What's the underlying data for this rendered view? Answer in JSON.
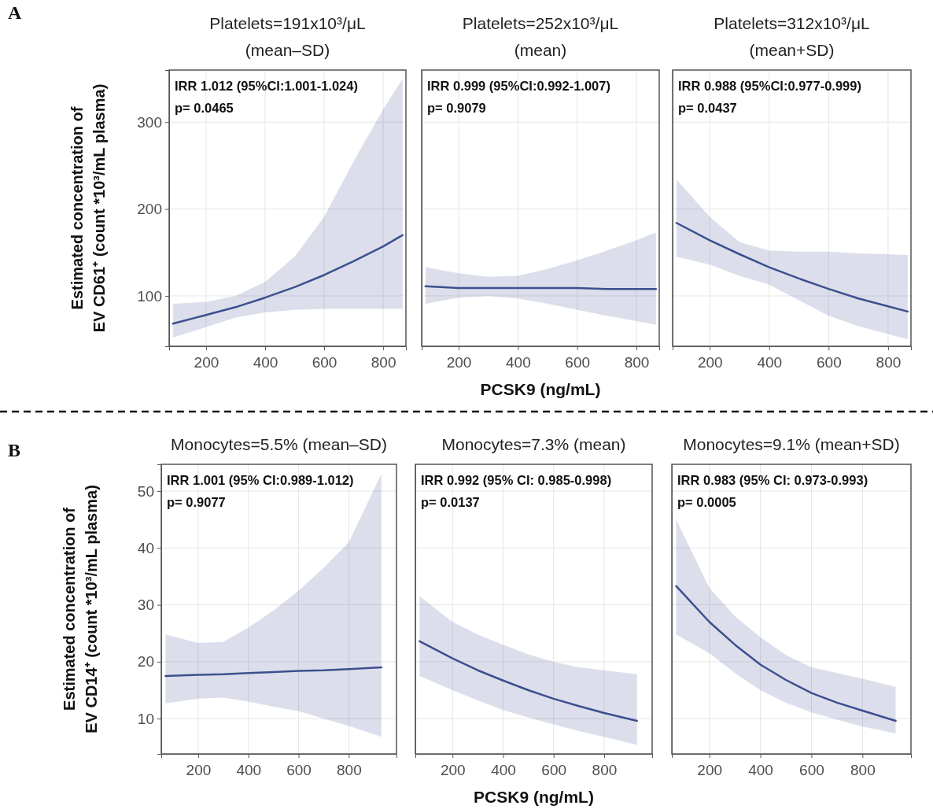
{
  "chart_data": [
    {
      "type": "line",
      "title": "Platelets=191x10³/μL",
      "subtitle": "(mean–SD)",
      "ylabel": "Estimated concentration of\nEV CD61⁺ (count *10³/mL plasma)",
      "annotations": [
        "IRR 1.012 (95%CI:1.001-1.024)",
        "p= 0.0465",
        "A"
      ],
      "x": [
        88,
        200,
        300,
        400,
        500,
        600,
        700,
        800,
        866
      ],
      "xlim": [
        75,
        877
      ],
      "xticks": [
        200,
        400,
        600,
        800
      ],
      "ylim": [
        42,
        360
      ],
      "yticks": [
        100,
        200,
        300
      ],
      "grid": true,
      "series": [
        {
          "color": "#3d4f8f",
          "values": [
            68,
            78,
            87,
            98,
            110,
            124,
            140,
            157,
            170
          ],
          "lower": [
            52,
            64,
            75,
            81,
            84,
            85,
            85,
            85,
            85
          ],
          "upper": [
            91,
            93,
            100,
            116,
            145,
            191,
            255,
            315,
            350
          ]
        }
      ]
    },
    {
      "type": "line",
      "title": "Platelets=252x10³/μL",
      "subtitle": "(mean)",
      "xlabel": "PCSK9 (ng/mL)",
      "annotations": [
        "IRR 0.999 (95%CI:0.992-1.007)",
        "p= 0.9079"
      ],
      "x": [
        88,
        200,
        300,
        400,
        500,
        600,
        700,
        800,
        866
      ],
      "xlim": [
        75,
        877
      ],
      "xticks": [
        200,
        400,
        600,
        800
      ],
      "ylim": [
        42,
        360
      ],
      "yticks": [
        100,
        200,
        300
      ],
      "grid": true,
      "tick_labels": "x",
      "series": [
        {
          "color": "#3d4f8f",
          "values": [
            111,
            109,
            109,
            109,
            109,
            109,
            108,
            108,
            108
          ],
          "lower": [
            91,
            98,
            100,
            97,
            91,
            84,
            77,
            71,
            67
          ],
          "upper": [
            133,
            126,
            122,
            123,
            131,
            141,
            152,
            164,
            173
          ]
        }
      ]
    },
    {
      "type": "line",
      "title": "Platelets=312x10³/μL",
      "subtitle": "(mean+SD)",
      "annotations": [
        "IRR 0.988 (95%CI:0.977-0.999)",
        "p= 0.0437"
      ],
      "x": [
        88,
        200,
        300,
        400,
        500,
        600,
        700,
        800,
        866
      ],
      "xlim": [
        75,
        877
      ],
      "xticks": [
        200,
        400,
        600,
        800
      ],
      "ylim": [
        42,
        360
      ],
      "yticks": [
        100,
        200,
        300
      ],
      "grid": true,
      "tick_labels": "x",
      "series": [
        {
          "color": "#3d4f8f",
          "values": [
            184,
            164,
            148,
            133,
            120,
            108,
            97,
            88,
            82
          ],
          "lower": [
            145,
            136,
            123,
            113,
            95,
            77,
            65,
            56,
            50
          ],
          "upper": [
            234,
            191,
            162,
            152,
            151,
            151,
            149,
            148,
            147
          ]
        }
      ]
    },
    {
      "type": "line",
      "title": "Monocytes=5.5% (mean–SD)",
      "ylabel": "Estimated concentration of\nEV CD14⁺ (count *10³/mL plasma)",
      "annotations": [
        "IRR 1.001 (95% CI:0.989-1.012)",
        "p= 0.9077",
        "B"
      ],
      "x": [
        70,
        200,
        300,
        400,
        500,
        600,
        700,
        800,
        930
      ],
      "xlim": [
        53,
        990
      ],
      "xticks": [
        200,
        400,
        600,
        800
      ],
      "ylim": [
        3.8,
        54.7
      ],
      "yticks": [
        10,
        20,
        30,
        40,
        50
      ],
      "grid": true,
      "series": [
        {
          "color": "#3d4f8f",
          "values": [
            17.5,
            17.7,
            17.8,
            18,
            18.2,
            18.4,
            18.5,
            18.7,
            19
          ],
          "lower": [
            12.7,
            13.5,
            13.7,
            13,
            12.1,
            11.3,
            10,
            8.7,
            6.8
          ],
          "upper": [
            24.8,
            23.3,
            23.5,
            26,
            29,
            32.5,
            36.5,
            41,
            53
          ]
        }
      ]
    },
    {
      "type": "line",
      "title": "Monocytes=7.3% (mean)",
      "xlabel": "PCSK9 (ng/mL)",
      "annotations": [
        "IRR 0.992 (95% CI: 0.985-0.998)",
        "p= 0.0137"
      ],
      "x": [
        70,
        200,
        300,
        400,
        500,
        600,
        700,
        800,
        930
      ],
      "xlim": [
        53,
        990
      ],
      "xticks": [
        200,
        400,
        600,
        800
      ],
      "ylim": [
        3.8,
        54.7
      ],
      "yticks": [
        10,
        20,
        30,
        40,
        50
      ],
      "grid": true,
      "tick_labels": "x",
      "series": [
        {
          "color": "#3d4f8f",
          "values": [
            23.6,
            20.6,
            18.5,
            16.7,
            15,
            13.5,
            12.2,
            11,
            9.6
          ],
          "lower": [
            17.5,
            15,
            13.2,
            11.5,
            10.2,
            9,
            7.8,
            6.8,
            5.4
          ],
          "upper": [
            31.5,
            27,
            24.8,
            23,
            21.3,
            20,
            19,
            18.5,
            17.8
          ]
        }
      ]
    },
    {
      "type": "line",
      "title": "Monocytes=9.1% (mean+SD)",
      "annotations": [
        "IRR 0.983 (95% CI: 0.973-0.993)",
        "p= 0.0005"
      ],
      "x": [
        70,
        200,
        300,
        400,
        500,
        600,
        700,
        800,
        930
      ],
      "xlim": [
        53,
        990
      ],
      "xticks": [
        200,
        400,
        600,
        800
      ],
      "ylim": [
        3.8,
        54.7
      ],
      "yticks": [
        10,
        20,
        30,
        40,
        50
      ],
      "grid": true,
      "tick_labels": "x",
      "series": [
        {
          "color": "#3d4f8f",
          "values": [
            33.3,
            27,
            23,
            19.5,
            16.8,
            14.5,
            12.8,
            11.4,
            9.6
          ],
          "lower": [
            24.8,
            21.5,
            18,
            15,
            12.8,
            11.1,
            9.8,
            8.6,
            7.4
          ],
          "upper": [
            45,
            33,
            28,
            24.3,
            21.2,
            19,
            18,
            17,
            15.6
          ]
        }
      ]
    }
  ]
}
